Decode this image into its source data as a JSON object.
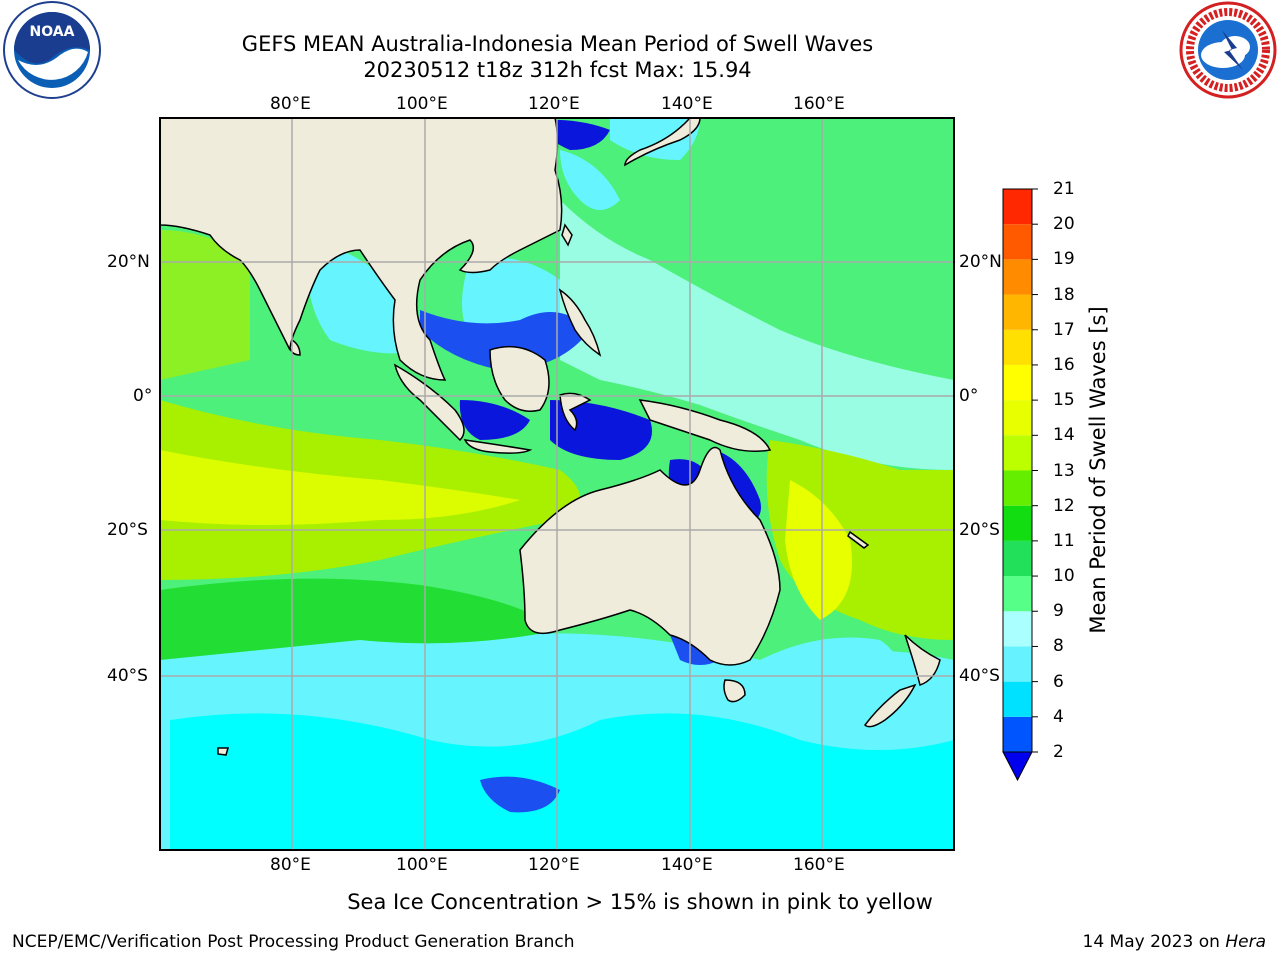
{
  "title": {
    "line1": "GEFS MEAN Australia-Indonesia Mean Period of Swell Waves",
    "line2": "20230512 t18z 312h fcst   Max: 15.94"
  },
  "map": {
    "lon_labels": [
      "80°E",
      "100°E",
      "120°E",
      "140°E",
      "160°E"
    ],
    "lat_labels": [
      "20°N",
      "0°",
      "20°S",
      "40°S"
    ],
    "lon_range": [
      60,
      180
    ],
    "lat_range": [
      -70,
      42
    ],
    "gridlines": true
  },
  "colorbar": {
    "label": "Mean Period of Swell Waves [s]",
    "ticks": [
      "2",
      "4",
      "6",
      "8",
      "9",
      "10",
      "11",
      "12",
      "13",
      "14",
      "15",
      "16",
      "17",
      "18",
      "19",
      "20",
      "21"
    ],
    "colors": [
      "#0055ff",
      "#00e0ff",
      "#66f2ff",
      "#aaffff",
      "#55ff88",
      "#22e05a",
      "#11dd11",
      "#66ee00",
      "#bbff00",
      "#e8ff00",
      "#ffff00",
      "#ffe000",
      "#ffb600",
      "#ff8c00",
      "#ff5a00",
      "#ff2800"
    ],
    "extend_color": "#0000ee"
  },
  "palette": {
    "land": "#efecdc",
    "deep_blue": "#0b16dd",
    "blue": "#1b4ff0",
    "cyan": "#00ffff",
    "light_cyan": "#66f5ff",
    "pale_cyan": "#a6fff5",
    "green_light": "#4df07a",
    "green": "#22dd33",
    "yellow_green": "#a8f000",
    "yellow": "#e8ff00"
  },
  "footer": {
    "sea_ice_note": "Sea Ice Concentration > 15% is shown in pink to yellow",
    "left": "NCEP/EMC/Verification Post Processing Product Generation Branch",
    "right_date": "14 May 2023 on ",
    "right_machine": "Hera"
  },
  "logos": {
    "left": "noaa-logo",
    "right": "nws-logo"
  }
}
